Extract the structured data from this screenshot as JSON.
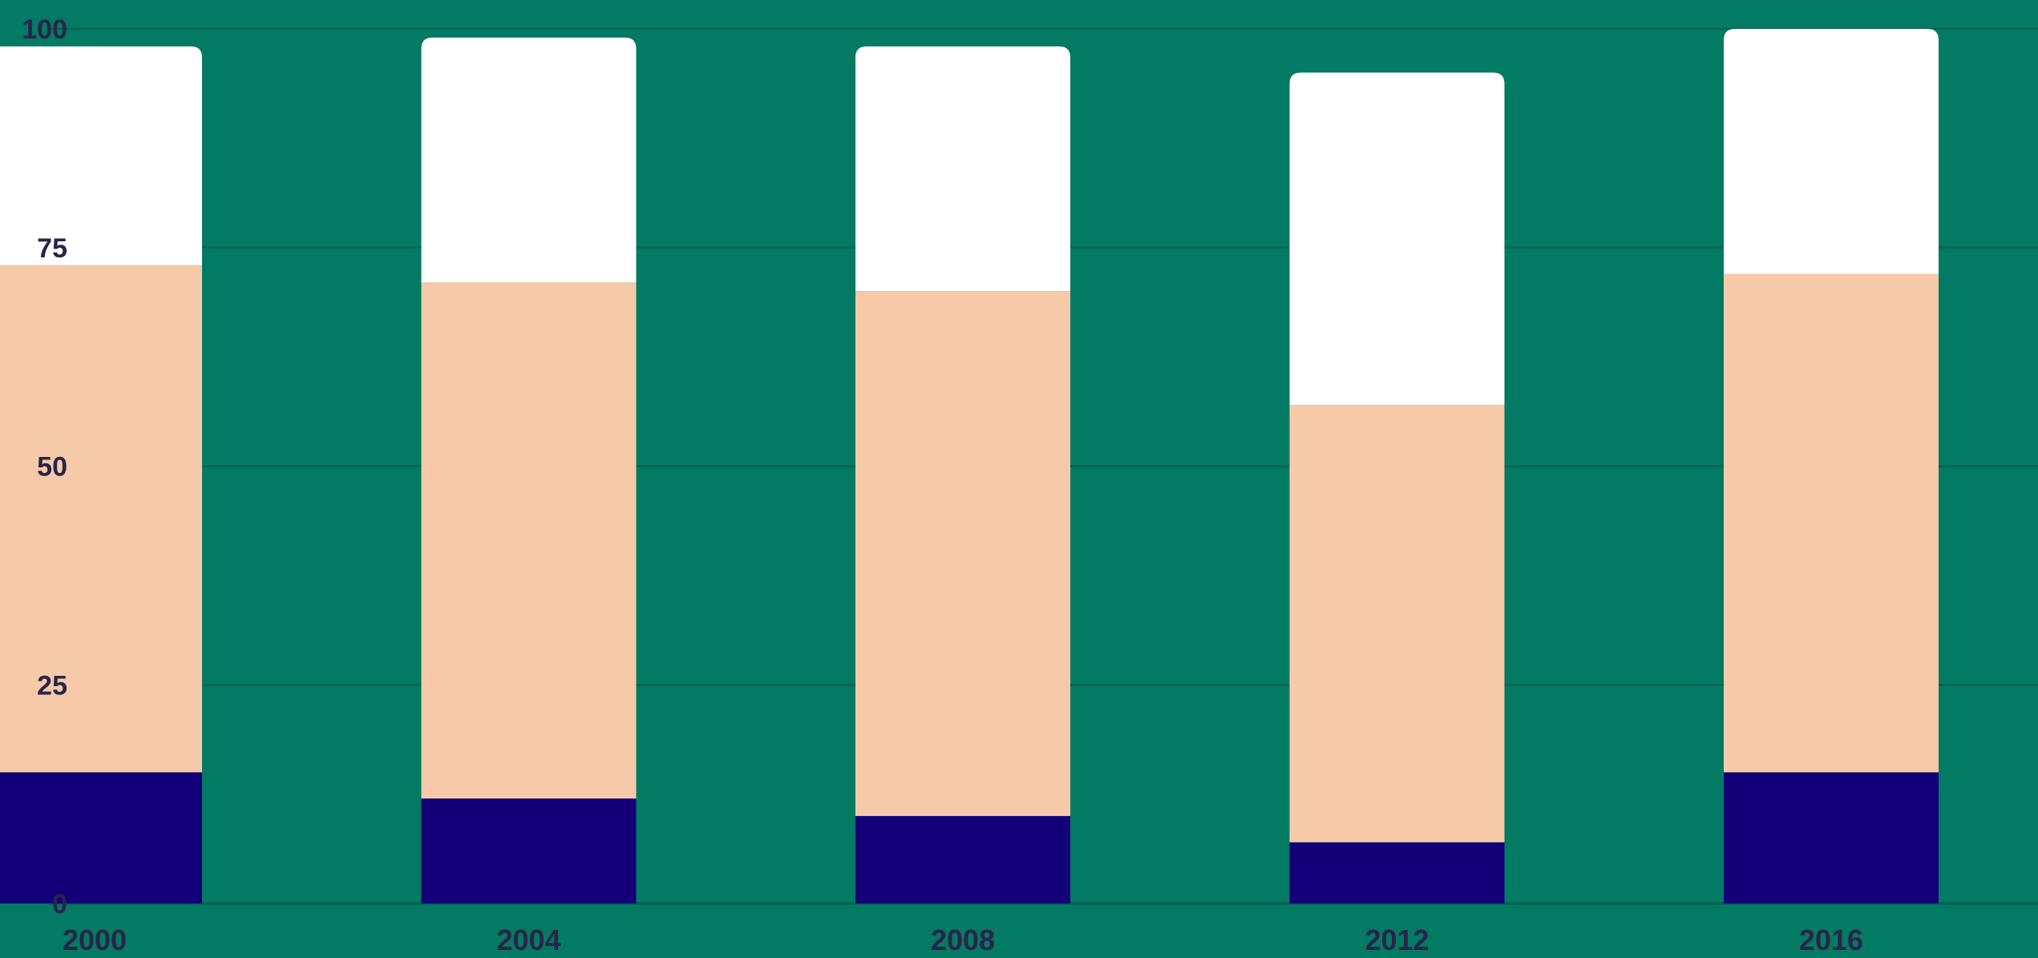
{
  "colors": {
    "background": "#027a64",
    "gridline": "#0b5d4c",
    "axis_text": "#2a2448",
    "series": [
      "#130078",
      "#f6caa8",
      "#ffffff"
    ]
  },
  "chart_data": {
    "type": "bar",
    "stacked": true,
    "title": "",
    "xlabel": "",
    "ylabel": "",
    "categories": [
      "2000",
      "2004",
      "2008",
      "2012",
      "2016"
    ],
    "series": [
      {
        "values": [
          15,
          12,
          10,
          7,
          15
        ]
      },
      {
        "values": [
          58,
          59,
          60,
          50,
          57
        ]
      },
      {
        "values": [
          25,
          28,
          28,
          38,
          28
        ]
      }
    ],
    "ylim": [
      0,
      100
    ],
    "yticks": [
      0,
      25,
      50,
      75,
      100
    ],
    "grid": true,
    "legend": "none"
  }
}
